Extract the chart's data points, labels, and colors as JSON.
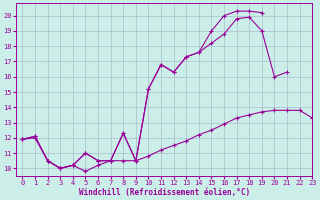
{
  "background_color": "#cceee8",
  "grid_color": "#aabbcc",
  "line_color": "#990099",
  "xlim": [
    -0.5,
    23
  ],
  "ylim": [
    9.5,
    20.8
  ],
  "xticks": [
    0,
    1,
    2,
    3,
    4,
    5,
    6,
    7,
    8,
    9,
    10,
    11,
    12,
    13,
    14,
    15,
    16,
    17,
    18,
    19,
    20,
    21,
    22,
    23
  ],
  "yticks": [
    10,
    11,
    12,
    13,
    14,
    15,
    16,
    17,
    18,
    19,
    20
  ],
  "xlabel": "Windchill (Refroidissement éolien,°C)",
  "series": [
    {
      "x": [
        0,
        1,
        2,
        3,
        4,
        5,
        6,
        7,
        8,
        9,
        10,
        11,
        12,
        13,
        14,
        15,
        16,
        17,
        18,
        19,
        20,
        21,
        22,
        23
      ],
      "y": [
        11.9,
        12.0,
        10.5,
        10.0,
        10.2,
        9.8,
        10.2,
        10.5,
        10.5,
        10.5,
        10.8,
        11.2,
        11.5,
        11.8,
        12.2,
        12.5,
        12.9,
        13.3,
        13.5,
        13.7,
        13.8,
        13.8,
        13.8,
        13.3
      ]
    },
    {
      "x": [
        0,
        1,
        2,
        3,
        4,
        5,
        6,
        7,
        8,
        9,
        10,
        11,
        12,
        13,
        14,
        15,
        16,
        17,
        18,
        19,
        20,
        21,
        22,
        23
      ],
      "y": [
        11.9,
        12.1,
        10.5,
        10.0,
        10.2,
        11.0,
        10.5,
        10.5,
        12.3,
        10.5,
        15.2,
        16.8,
        16.3,
        17.3,
        17.6,
        18.2,
        18.8,
        19.8,
        19.9,
        19.0,
        16.0,
        16.3,
        null,
        null
      ]
    },
    {
      "x": [
        0,
        1,
        2,
        3,
        4,
        5,
        6,
        7,
        8,
        9,
        10,
        11,
        12,
        13,
        14,
        15,
        16,
        17,
        18,
        19,
        20,
        21,
        22,
        23
      ],
      "y": [
        11.9,
        12.1,
        10.5,
        10.0,
        10.2,
        11.0,
        10.5,
        10.5,
        12.3,
        10.5,
        15.2,
        16.8,
        16.3,
        17.3,
        17.6,
        19.0,
        20.0,
        20.3,
        20.3,
        20.2,
        null,
        null,
        null,
        null
      ]
    }
  ]
}
